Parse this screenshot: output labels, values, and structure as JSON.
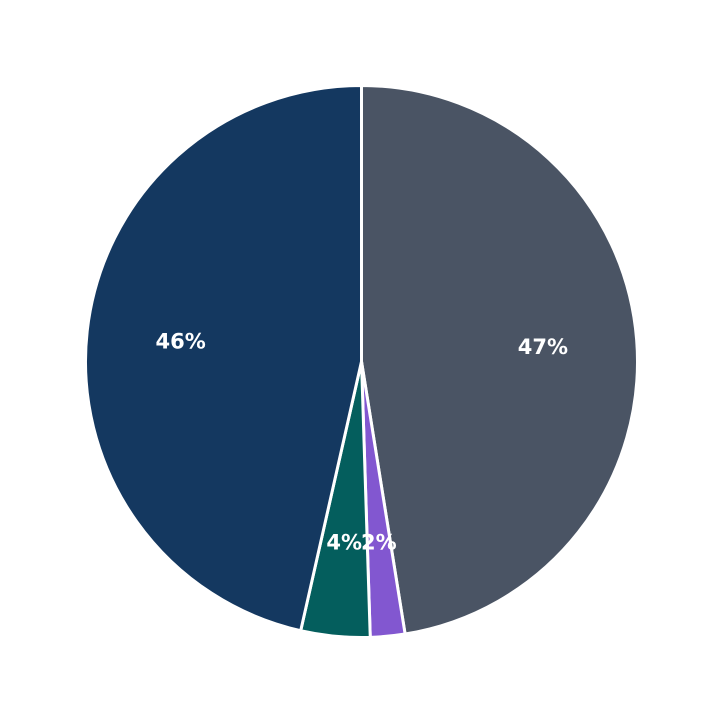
{
  "chart_data": {
    "type": "pie",
    "title": "",
    "slices": [
      {
        "value": 47,
        "label": "47%",
        "color": "#4a5464"
      },
      {
        "value": 2,
        "label": "2%",
        "color": "#8257d0"
      },
      {
        "value": 4,
        "label": "4%",
        "color": "#045e5d"
      },
      {
        "value": 46,
        "label": "46%",
        "color": "#143860"
      }
    ],
    "start_angle": "top",
    "direction": "clockwise",
    "edge_color": "#ffffff"
  }
}
